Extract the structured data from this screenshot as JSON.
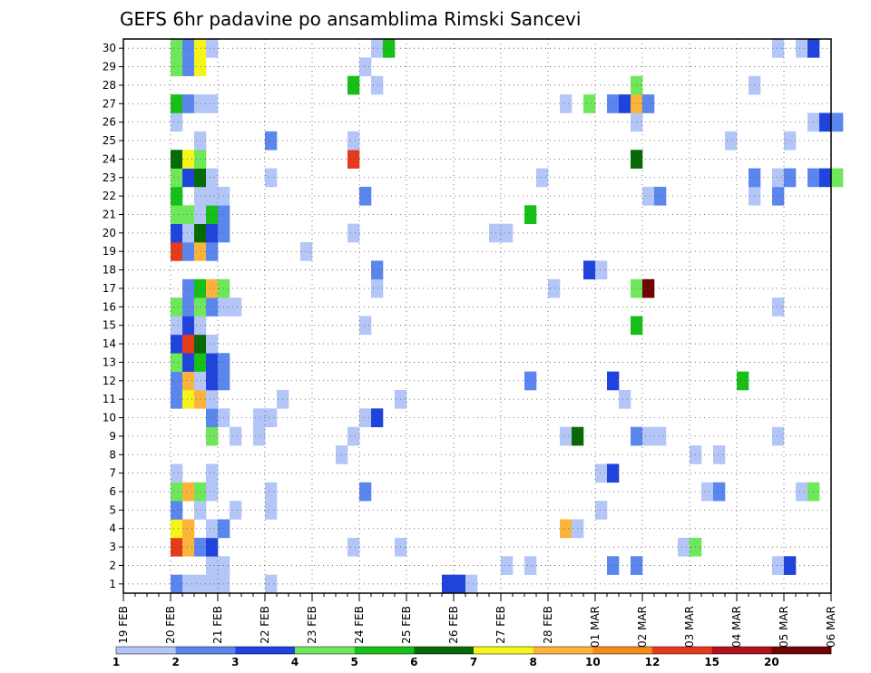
{
  "chart_data": {
    "type": "heatmap",
    "title": "GEFS 6hr padavine po ansamblima Rimski Sancevi",
    "xlabel": "",
    "ylabel": "",
    "x_tick_labels": [
      "19 FEB",
      "20 FEB",
      "21 FEB",
      "22 FEB",
      "23 FEB",
      "24 FEB",
      "25 FEB",
      "26 FEB",
      "27 FEB",
      "28 FEB",
      "01 MAR",
      "02 MAR",
      "03 MAR",
      "04 MAR",
      "05 MAR",
      "06 MAR"
    ],
    "y_tick_labels": [
      "1",
      "2",
      "3",
      "4",
      "5",
      "6",
      "7",
      "8",
      "9",
      "10",
      "11",
      "12",
      "13",
      "14",
      "15",
      "16",
      "17",
      "18",
      "19",
      "20",
      "21",
      "22",
      "23",
      "24",
      "25",
      "26",
      "27",
      "28",
      "29",
      "30"
    ],
    "x_range_days": [
      0,
      15
    ],
    "y_range": [
      0,
      30
    ],
    "time_step_hours": 6,
    "grid": true,
    "colorbar": {
      "levels": [
        "1",
        "2",
        "3",
        "4",
        "5",
        "6",
        "7",
        "8",
        "10",
        "12",
        "15",
        "20"
      ],
      "colors": [
        "#b3c6f7",
        "#5b86ee",
        "#1f44dd",
        "#6ee85a",
        "#16c016",
        "#076a07",
        "#f5f51b",
        "#fbb43b",
        "#f58a1b",
        "#e53a1b",
        "#b4101c",
        "#700404"
      ]
    },
    "cells": [
      {
        "t": 4,
        "m": 0,
        "v": 2
      },
      {
        "t": 5,
        "m": 0,
        "v": 1
      },
      {
        "t": 6,
        "m": 0,
        "v": 1
      },
      {
        "t": 7,
        "m": 0,
        "v": 1
      },
      {
        "t": 8,
        "m": 0,
        "v": 1
      },
      {
        "t": 12,
        "m": 0,
        "v": 1
      },
      {
        "t": 27,
        "m": 0,
        "v": 3
      },
      {
        "t": 28,
        "m": 0,
        "v": 3
      },
      {
        "t": 29,
        "m": 0,
        "v": 1
      },
      {
        "t": 7,
        "m": 1,
        "v": 1
      },
      {
        "t": 8,
        "m": 1,
        "v": 1
      },
      {
        "t": 32,
        "m": 1,
        "v": 1
      },
      {
        "t": 34,
        "m": 1,
        "v": 1
      },
      {
        "t": 41,
        "m": 1,
        "v": 2
      },
      {
        "t": 43,
        "m": 1,
        "v": 2
      },
      {
        "t": 55,
        "m": 1,
        "v": 1
      },
      {
        "t": 56,
        "m": 1,
        "v": 3
      },
      {
        "t": 4,
        "m": 2,
        "v": 10
      },
      {
        "t": 5,
        "m": 2,
        "v": 8
      },
      {
        "t": 6,
        "m": 2,
        "v": 2
      },
      {
        "t": 7,
        "m": 2,
        "v": 3
      },
      {
        "t": 19,
        "m": 2,
        "v": 1
      },
      {
        "t": 23,
        "m": 2,
        "v": 1
      },
      {
        "t": 47,
        "m": 2,
        "v": 1
      },
      {
        "t": 48,
        "m": 2,
        "v": 4
      },
      {
        "t": 4,
        "m": 3,
        "v": 7
      },
      {
        "t": 5,
        "m": 3,
        "v": 8
      },
      {
        "t": 7,
        "m": 3,
        "v": 1
      },
      {
        "t": 8,
        "m": 3,
        "v": 2
      },
      {
        "t": 37,
        "m": 3,
        "v": 8
      },
      {
        "t": 38,
        "m": 3,
        "v": 1
      },
      {
        "t": 4,
        "m": 4,
        "v": 2
      },
      {
        "t": 6,
        "m": 4,
        "v": 1
      },
      {
        "t": 9,
        "m": 4,
        "v": 1
      },
      {
        "t": 12,
        "m": 4,
        "v": 1
      },
      {
        "t": 40,
        "m": 4,
        "v": 1
      },
      {
        "t": 4,
        "m": 5,
        "v": 4
      },
      {
        "t": 5,
        "m": 5,
        "v": 8
      },
      {
        "t": 6,
        "m": 5,
        "v": 4
      },
      {
        "t": 7,
        "m": 5,
        "v": 1
      },
      {
        "t": 12,
        "m": 5,
        "v": 1
      },
      {
        "t": 20,
        "m": 5,
        "v": 2
      },
      {
        "t": 49,
        "m": 5,
        "v": 1
      },
      {
        "t": 50,
        "m": 5,
        "v": 2
      },
      {
        "t": 57,
        "m": 5,
        "v": 1
      },
      {
        "t": 58,
        "m": 5,
        "v": 4
      },
      {
        "t": 4,
        "m": 6,
        "v": 1
      },
      {
        "t": 7,
        "m": 6,
        "v": 1
      },
      {
        "t": 40,
        "m": 6,
        "v": 1
      },
      {
        "t": 41,
        "m": 6,
        "v": 3
      },
      {
        "t": 18,
        "m": 7,
        "v": 1
      },
      {
        "t": 48,
        "m": 7,
        "v": 1
      },
      {
        "t": 50,
        "m": 7,
        "v": 1
      },
      {
        "t": 7,
        "m": 8,
        "v": 4
      },
      {
        "t": 9,
        "m": 8,
        "v": 1
      },
      {
        "t": 11,
        "m": 8,
        "v": 1
      },
      {
        "t": 19,
        "m": 8,
        "v": 1
      },
      {
        "t": 37,
        "m": 8,
        "v": 1
      },
      {
        "t": 38,
        "m": 8,
        "v": 6
      },
      {
        "t": 43,
        "m": 8,
        "v": 2
      },
      {
        "t": 44,
        "m": 8,
        "v": 1
      },
      {
        "t": 45,
        "m": 8,
        "v": 1
      },
      {
        "t": 55,
        "m": 8,
        "v": 1
      },
      {
        "t": 7,
        "m": 9,
        "v": 2
      },
      {
        "t": 8,
        "m": 9,
        "v": 1
      },
      {
        "t": 11,
        "m": 9,
        "v": 1
      },
      {
        "t": 12,
        "m": 9,
        "v": 1
      },
      {
        "t": 20,
        "m": 9,
        "v": 1
      },
      {
        "t": 21,
        "m": 9,
        "v": 3
      },
      {
        "t": 4,
        "m": 10,
        "v": 2
      },
      {
        "t": 5,
        "m": 10,
        "v": 7
      },
      {
        "t": 6,
        "m": 10,
        "v": 8
      },
      {
        "t": 7,
        "m": 10,
        "v": 1
      },
      {
        "t": 13,
        "m": 10,
        "v": 1
      },
      {
        "t": 23,
        "m": 10,
        "v": 1
      },
      {
        "t": 42,
        "m": 10,
        "v": 1
      },
      {
        "t": 4,
        "m": 11,
        "v": 2
      },
      {
        "t": 5,
        "m": 11,
        "v": 8
      },
      {
        "t": 6,
        "m": 11,
        "v": 1
      },
      {
        "t": 7,
        "m": 11,
        "v": 3
      },
      {
        "t": 8,
        "m": 11,
        "v": 2
      },
      {
        "t": 34,
        "m": 11,
        "v": 2
      },
      {
        "t": 41,
        "m": 11,
        "v": 3
      },
      {
        "t": 52,
        "m": 11,
        "v": 5
      },
      {
        "t": 4,
        "m": 12,
        "v": 4
      },
      {
        "t": 5,
        "m": 12,
        "v": 3
      },
      {
        "t": 6,
        "m": 12,
        "v": 5
      },
      {
        "t": 7,
        "m": 12,
        "v": 3
      },
      {
        "t": 8,
        "m": 12,
        "v": 2
      },
      {
        "t": 4,
        "m": 13,
        "v": 3
      },
      {
        "t": 5,
        "m": 13,
        "v": 10
      },
      {
        "t": 6,
        "m": 13,
        "v": 6
      },
      {
        "t": 7,
        "m": 13,
        "v": 1
      },
      {
        "t": 4,
        "m": 14,
        "v": 1
      },
      {
        "t": 5,
        "m": 14,
        "v": 3
      },
      {
        "t": 6,
        "m": 14,
        "v": 1
      },
      {
        "t": 20,
        "m": 14,
        "v": 1
      },
      {
        "t": 43,
        "m": 14,
        "v": 5
      },
      {
        "t": 4,
        "m": 15,
        "v": 4
      },
      {
        "t": 5,
        "m": 15,
        "v": 2
      },
      {
        "t": 6,
        "m": 15,
        "v": 4
      },
      {
        "t": 7,
        "m": 15,
        "v": 2
      },
      {
        "t": 8,
        "m": 15,
        "v": 1
      },
      {
        "t": 9,
        "m": 15,
        "v": 1
      },
      {
        "t": 55,
        "m": 15,
        "v": 1
      },
      {
        "t": 5,
        "m": 16,
        "v": 2
      },
      {
        "t": 6,
        "m": 16,
        "v": 5
      },
      {
        "t": 7,
        "m": 16,
        "v": 8
      },
      {
        "t": 8,
        "m": 16,
        "v": 4
      },
      {
        "t": 21,
        "m": 16,
        "v": 1
      },
      {
        "t": 36,
        "m": 16,
        "v": 1
      },
      {
        "t": 43,
        "m": 16,
        "v": 4
      },
      {
        "t": 44,
        "m": 16,
        "v": 15
      },
      {
        "t": 21,
        "m": 17,
        "v": 2
      },
      {
        "t": 39,
        "m": 17,
        "v": 3
      },
      {
        "t": 40,
        "m": 17,
        "v": 1
      },
      {
        "t": 4,
        "m": 18,
        "v": 10
      },
      {
        "t": 5,
        "m": 18,
        "v": 2
      },
      {
        "t": 6,
        "m": 18,
        "v": 8
      },
      {
        "t": 7,
        "m": 18,
        "v": 2
      },
      {
        "t": 15,
        "m": 18,
        "v": 1
      },
      {
        "t": 4,
        "m": 19,
        "v": 3
      },
      {
        "t": 5,
        "m": 19,
        "v": 1
      },
      {
        "t": 6,
        "m": 19,
        "v": 6
      },
      {
        "t": 7,
        "m": 19,
        "v": 3
      },
      {
        "t": 8,
        "m": 19,
        "v": 2
      },
      {
        "t": 19,
        "m": 19,
        "v": 1
      },
      {
        "t": 31,
        "m": 19,
        "v": 1
      },
      {
        "t": 32,
        "m": 19,
        "v": 1
      },
      {
        "t": 4,
        "m": 20,
        "v": 4
      },
      {
        "t": 5,
        "m": 20,
        "v": 4
      },
      {
        "t": 6,
        "m": 20,
        "v": 1
      },
      {
        "t": 7,
        "m": 20,
        "v": 5
      },
      {
        "t": 8,
        "m": 20,
        "v": 2
      },
      {
        "t": 34,
        "m": 20,
        "v": 5
      },
      {
        "t": 4,
        "m": 21,
        "v": 5
      },
      {
        "t": 6,
        "m": 21,
        "v": 1
      },
      {
        "t": 7,
        "m": 21,
        "v": 1
      },
      {
        "t": 8,
        "m": 21,
        "v": 1
      },
      {
        "t": 20,
        "m": 21,
        "v": 2
      },
      {
        "t": 44,
        "m": 21,
        "v": 1
      },
      {
        "t": 45,
        "m": 21,
        "v": 2
      },
      {
        "t": 53,
        "m": 21,
        "v": 1
      },
      {
        "t": 55,
        "m": 21,
        "v": 2
      },
      {
        "t": 4,
        "m": 22,
        "v": 4
      },
      {
        "t": 5,
        "m": 22,
        "v": 3
      },
      {
        "t": 6,
        "m": 22,
        "v": 6
      },
      {
        "t": 7,
        "m": 22,
        "v": 1
      },
      {
        "t": 12,
        "m": 22,
        "v": 1
      },
      {
        "t": 35,
        "m": 22,
        "v": 1
      },
      {
        "t": 53,
        "m": 22,
        "v": 2
      },
      {
        "t": 55,
        "m": 22,
        "v": 1
      },
      {
        "t": 56,
        "m": 22,
        "v": 2
      },
      {
        "t": 58,
        "m": 22,
        "v": 2
      },
      {
        "t": 59,
        "m": 22,
        "v": 3
      },
      {
        "t": 60,
        "m": 22,
        "v": 4
      },
      {
        "t": 4,
        "m": 23,
        "v": 6
      },
      {
        "t": 5,
        "m": 23,
        "v": 7
      },
      {
        "t": 6,
        "m": 23,
        "v": 4
      },
      {
        "t": 19,
        "m": 23,
        "v": 10
      },
      {
        "t": 43,
        "m": 23,
        "v": 6
      },
      {
        "t": 6,
        "m": 24,
        "v": 1
      },
      {
        "t": 12,
        "m": 24,
        "v": 2
      },
      {
        "t": 19,
        "m": 24,
        "v": 1
      },
      {
        "t": 51,
        "m": 24,
        "v": 1
      },
      {
        "t": 56,
        "m": 24,
        "v": 1
      },
      {
        "t": 4,
        "m": 25,
        "v": 1
      },
      {
        "t": 43,
        "m": 25,
        "v": 1
      },
      {
        "t": 58,
        "m": 25,
        "v": 1
      },
      {
        "t": 59,
        "m": 25,
        "v": 3
      },
      {
        "t": 60,
        "m": 25,
        "v": 2
      },
      {
        "t": 4,
        "m": 26,
        "v": 5
      },
      {
        "t": 5,
        "m": 26,
        "v": 2
      },
      {
        "t": 6,
        "m": 26,
        "v": 1
      },
      {
        "t": 7,
        "m": 26,
        "v": 1
      },
      {
        "t": 37,
        "m": 26,
        "v": 1
      },
      {
        "t": 39,
        "m": 26,
        "v": 4
      },
      {
        "t": 41,
        "m": 26,
        "v": 2
      },
      {
        "t": 42,
        "m": 26,
        "v": 3
      },
      {
        "t": 43,
        "m": 26,
        "v": 8
      },
      {
        "t": 44,
        "m": 26,
        "v": 2
      },
      {
        "t": 19,
        "m": 27,
        "v": 5
      },
      {
        "t": 21,
        "m": 27,
        "v": 1
      },
      {
        "t": 43,
        "m": 27,
        "v": 4
      },
      {
        "t": 53,
        "m": 27,
        "v": 1
      },
      {
        "t": 4,
        "m": 28,
        "v": 4
      },
      {
        "t": 5,
        "m": 28,
        "v": 2
      },
      {
        "t": 6,
        "m": 28,
        "v": 7
      },
      {
        "t": 20,
        "m": 28,
        "v": 1
      },
      {
        "t": 4,
        "m": 29,
        "v": 4
      },
      {
        "t": 5,
        "m": 29,
        "v": 2
      },
      {
        "t": 6,
        "m": 29,
        "v": 7
      },
      {
        "t": 7,
        "m": 29,
        "v": 1
      },
      {
        "t": 21,
        "m": 29,
        "v": 1
      },
      {
        "t": 22,
        "m": 29,
        "v": 5
      },
      {
        "t": 55,
        "m": 29,
        "v": 1
      },
      {
        "t": 57,
        "m": 29,
        "v": 1
      },
      {
        "t": 58,
        "m": 29,
        "v": 3
      }
    ]
  }
}
